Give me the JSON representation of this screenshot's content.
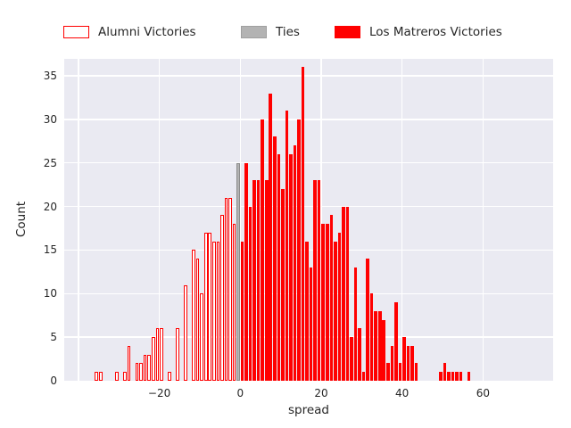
{
  "legend": {
    "items": [
      {
        "label": "Alumni Victories",
        "fill": "#ffffff",
        "edge": "#ff0000"
      },
      {
        "label": "Ties",
        "fill": "#b3b3b3",
        "edge": "#a0a0a0"
      },
      {
        "label": "Los Matreros Victories",
        "fill": "#ff0000",
        "edge": "#ff0000"
      }
    ]
  },
  "chart_data": {
    "type": "bar",
    "subtype": "histogram",
    "title": "",
    "xlabel": "spread",
    "ylabel": "Count",
    "xlim": [
      -43.5,
      77.3
    ],
    "ylim": [
      0,
      37
    ],
    "xticks": [
      -20,
      0,
      20,
      40,
      60
    ],
    "xgrid": [
      -40,
      -20,
      0,
      20,
      40,
      60
    ],
    "yticks": [
      0,
      5,
      10,
      15,
      20,
      25,
      30,
      35
    ],
    "grid": true,
    "legend_position": "top",
    "bin_width": 1,
    "background": "#eaeaf2",
    "grid_color": "#ffffff",
    "text_color": "#262626",
    "series": [
      {
        "name": "Alumni Victories",
        "style": "hollow",
        "fill": "#ffffff",
        "edge": "#ff0000",
        "bins": [
          [
            -36,
            1
          ],
          [
            -35,
            1
          ],
          [
            -31,
            1
          ],
          [
            -29,
            1
          ],
          [
            -28,
            4
          ],
          [
            -26,
            2
          ],
          [
            -25,
            2
          ],
          [
            -24,
            3
          ],
          [
            -23,
            3
          ],
          [
            -22,
            5
          ],
          [
            -21,
            6
          ],
          [
            -20,
            6
          ],
          [
            -18,
            1
          ],
          [
            -16,
            6
          ],
          [
            -14,
            11
          ],
          [
            -12,
            15
          ],
          [
            -11,
            14
          ],
          [
            -10,
            10
          ],
          [
            -9,
            17
          ],
          [
            -8,
            17
          ],
          [
            -7,
            16
          ],
          [
            -6,
            16
          ],
          [
            -5,
            19
          ],
          [
            -4,
            21
          ],
          [
            -3,
            21
          ],
          [
            -2,
            18
          ]
        ]
      },
      {
        "name": "Ties",
        "style": "solid",
        "fill": "#b3b3b3",
        "edge": "#8c8c8c",
        "bins": [
          [
            -1,
            25
          ]
        ]
      },
      {
        "name": "Los Matreros Victories",
        "style": "solid",
        "fill": "#ff0000",
        "edge": "#ff0000",
        "bins": [
          [
            0,
            16
          ],
          [
            1,
            25
          ],
          [
            2,
            20
          ],
          [
            3,
            23
          ],
          [
            4,
            23
          ],
          [
            5,
            30
          ],
          [
            6,
            23
          ],
          [
            7,
            33
          ],
          [
            8,
            28
          ],
          [
            9,
            26
          ],
          [
            10,
            22
          ],
          [
            11,
            31
          ],
          [
            12,
            26
          ],
          [
            13,
            27
          ],
          [
            14,
            30
          ],
          [
            15,
            36
          ],
          [
            16,
            16
          ],
          [
            17,
            13
          ],
          [
            18,
            23
          ],
          [
            19,
            23
          ],
          [
            20,
            18
          ],
          [
            21,
            18
          ],
          [
            22,
            19
          ],
          [
            23,
            16
          ],
          [
            24,
            17
          ],
          [
            25,
            20
          ],
          [
            26,
            20
          ],
          [
            27,
            5
          ],
          [
            28,
            13
          ],
          [
            29,
            6
          ],
          [
            30,
            1
          ],
          [
            31,
            14
          ],
          [
            32,
            10
          ],
          [
            33,
            8
          ],
          [
            34,
            8
          ],
          [
            35,
            7
          ],
          [
            36,
            2
          ],
          [
            37,
            4
          ],
          [
            38,
            9
          ],
          [
            39,
            2
          ],
          [
            40,
            5
          ],
          [
            41,
            4
          ],
          [
            42,
            4
          ],
          [
            43,
            2
          ],
          [
            49,
            1
          ],
          [
            50,
            2
          ],
          [
            51,
            1
          ],
          [
            52,
            1
          ],
          [
            53,
            1
          ],
          [
            54,
            1
          ],
          [
            56,
            1
          ]
        ]
      }
    ]
  }
}
